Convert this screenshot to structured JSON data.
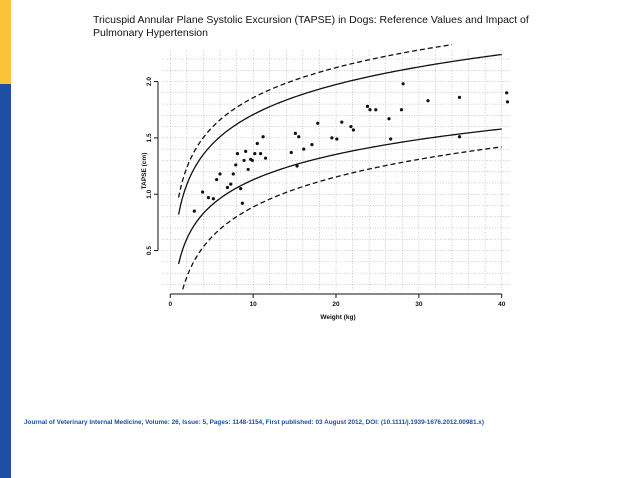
{
  "slide": {
    "title": "Tricuspid Annular Plane Systolic Excursion (TAPSE) in Dogs: Reference Values and Impact of Pulmonary Hypertension",
    "citation": "Journal of Veterinary Internal Medicine, Volume: 26, Issue: 5, Pages: 1148-1154, First published: 03 August 2012, DOI: (10.1111/j.1939-1676.2012.00981.x)",
    "colors": {
      "stripe_top": "#f9c33a",
      "stripe_bottom": "#1d4fa3",
      "citation": "#1d4fa3"
    }
  },
  "chart_data": {
    "type": "scatter",
    "xlabel": "Weight (kg)",
    "ylabel": "TAPSE (cm)",
    "xlim": [
      -1,
      41
    ],
    "ylim": [
      0.15,
      2.28
    ],
    "x_ticks": [
      0,
      10,
      20,
      30,
      40
    ],
    "y_ticks": [
      0.5,
      1.0,
      1.5,
      2.0
    ],
    "y_tick_labels": [
      "0.5",
      "1.0",
      "1.5",
      "2.0"
    ],
    "grid": true,
    "points": [
      [
        2.9,
        0.85
      ],
      [
        3.9,
        1.02
      ],
      [
        4.6,
        0.97
      ],
      [
        5.2,
        0.96
      ],
      [
        5.6,
        1.13
      ],
      [
        6.0,
        1.18
      ],
      [
        6.9,
        1.06
      ],
      [
        7.3,
        1.09
      ],
      [
        7.6,
        1.18
      ],
      [
        7.9,
        1.26
      ],
      [
        8.1,
        1.36
      ],
      [
        8.5,
        1.05
      ],
      [
        8.7,
        0.92
      ],
      [
        8.9,
        1.3
      ],
      [
        9.1,
        1.38
      ],
      [
        9.4,
        1.22
      ],
      [
        9.7,
        1.31
      ],
      [
        9.9,
        1.3
      ],
      [
        10.2,
        1.36
      ],
      [
        10.5,
        1.45
      ],
      [
        10.9,
        1.36
      ],
      [
        11.2,
        1.51
      ],
      [
        11.5,
        1.32
      ],
      [
        14.6,
        1.37
      ],
      [
        15.1,
        1.54
      ],
      [
        15.3,
        1.25
      ],
      [
        15.5,
        1.51
      ],
      [
        16.1,
        1.4
      ],
      [
        17.1,
        1.44
      ],
      [
        17.8,
        1.63
      ],
      [
        19.5,
        1.5
      ],
      [
        20.1,
        1.49
      ],
      [
        20.7,
        1.64
      ],
      [
        21.8,
        1.6
      ],
      [
        22.1,
        1.57
      ],
      [
        23.8,
        1.78
      ],
      [
        24.1,
        1.75
      ],
      [
        24.8,
        1.75
      ],
      [
        26.4,
        1.67
      ],
      [
        26.6,
        1.49
      ],
      [
        27.9,
        1.75
      ],
      [
        28.1,
        1.98
      ],
      [
        31.1,
        1.83
      ],
      [
        34.9,
        1.86
      ],
      [
        34.9,
        1.51
      ],
      [
        40.6,
        1.9
      ],
      [
        40.7,
        1.82
      ]
    ],
    "curves": {
      "outer": {
        "style": "dashed",
        "a": 0.14,
        "b": 0.85
      },
      "inner": {
        "style": "solid",
        "a": 0.32,
        "b": 0.6
      },
      "center": 0.82,
      "x_range": [
        1,
        40
      ]
    }
  }
}
